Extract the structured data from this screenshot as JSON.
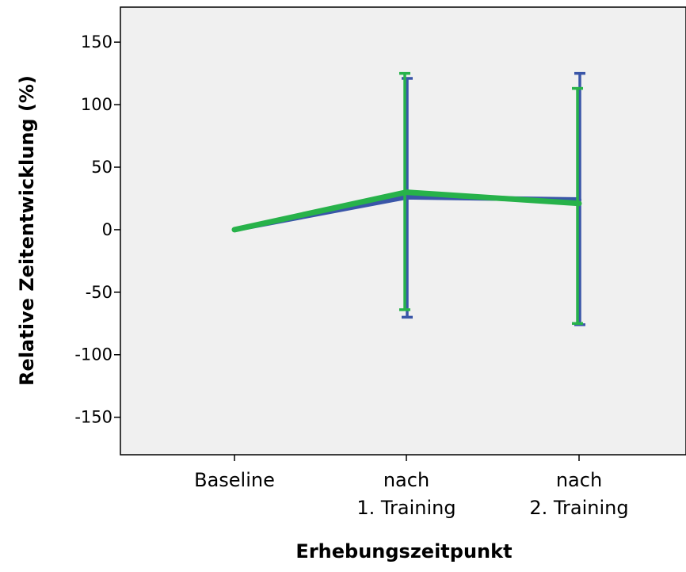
{
  "chart_data": {
    "type": "line",
    "title": "",
    "xlabel": "Erhebungszeitpunkt",
    "ylabel": "Relative Zeitentwicklung (%)",
    "categories": [
      [
        "Baseline"
      ],
      [
        "nach",
        "1. Training"
      ],
      [
        "nach",
        "2. Training"
      ]
    ],
    "ylim": [
      -180,
      178
    ],
    "yticks": [
      150,
      100,
      50,
      0,
      -50,
      -100,
      -150
    ],
    "ytick_labels": [
      "150",
      "100",
      "50",
      "0",
      "-50",
      "-100",
      "-150"
    ],
    "grid": false,
    "legend": "none",
    "background_color": "#f0f0f0",
    "series": [
      {
        "color": "#3a56a8",
        "values": [
          0,
          26,
          24
        ],
        "error_bars": [
          null,
          [
            -70,
            121
          ],
          [
            -76,
            125
          ]
        ]
      },
      {
        "color": "#27b24a",
        "values": [
          0,
          30,
          21
        ],
        "error_bars": [
          null,
          [
            -64,
            125
          ],
          [
            -75,
            113
          ]
        ]
      }
    ]
  }
}
